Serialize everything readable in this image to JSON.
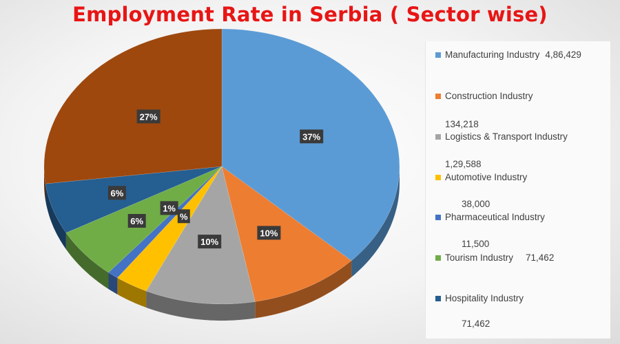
{
  "title": "Employment Rate in Serbia ( Sector wise)",
  "colors": {
    "title": "#e81515",
    "label_bg": "#3a3a3a",
    "label_text": "#ffffff"
  },
  "chart_data": {
    "type": "pie",
    "title": "Employment Rate in Serbia ( Sector wise)",
    "legend_position": "right",
    "slices": [
      {
        "name": "Manufacturing Industry",
        "percent": 37,
        "label": "37%",
        "color": "#5b9bd5"
      },
      {
        "name": "Construction Industry",
        "percent": 10,
        "label": "10%",
        "color": "#ed7d31"
      },
      {
        "name": "Logistics & Transport Industry",
        "percent": 10,
        "label": "10%",
        "color": "#a5a5a5"
      },
      {
        "name": "Automotive Industry",
        "percent": 3,
        "label": "%",
        "color": "#ffc000"
      },
      {
        "name": "Pharmaceutical Industry",
        "percent": 1,
        "label": "1%",
        "color": "#4472c4"
      },
      {
        "name": "Tourism Industry",
        "percent": 6,
        "label": "6%",
        "color": "#70ad47"
      },
      {
        "name": "Hospitality Industry",
        "percent": 6,
        "label": "6%",
        "color": "#255e91"
      },
      {
        "name": "",
        "percent": 27,
        "label": "27%",
        "color": "#9e480e"
      }
    ]
  },
  "legend": {
    "entries": [
      {
        "text": "Manufacturing Industry",
        "value": "4,86,429",
        "color": "#5b9bd5"
      },
      {
        "text": "Construction Industry",
        "value": "",
        "color": "#ed7d31"
      },
      {
        "text": "Logistics & Transport Industry",
        "value": "",
        "color": "#a5a5a5"
      },
      {
        "text": "Automotive Industry",
        "value": "",
        "color": "#ffc000"
      },
      {
        "text": "Pharmaceutical Industry",
        "value": "",
        "color": "#4472c4"
      },
      {
        "text": "Tourism Industry",
        "value": "71,462",
        "color": "#70ad47"
      },
      {
        "text": "Hospitality Industry",
        "value": "",
        "color": "#255e91"
      }
    ],
    "extra_values": [
      "134,218",
      "1,29,588",
      "38,000",
      "11,500",
      "71,462"
    ]
  }
}
